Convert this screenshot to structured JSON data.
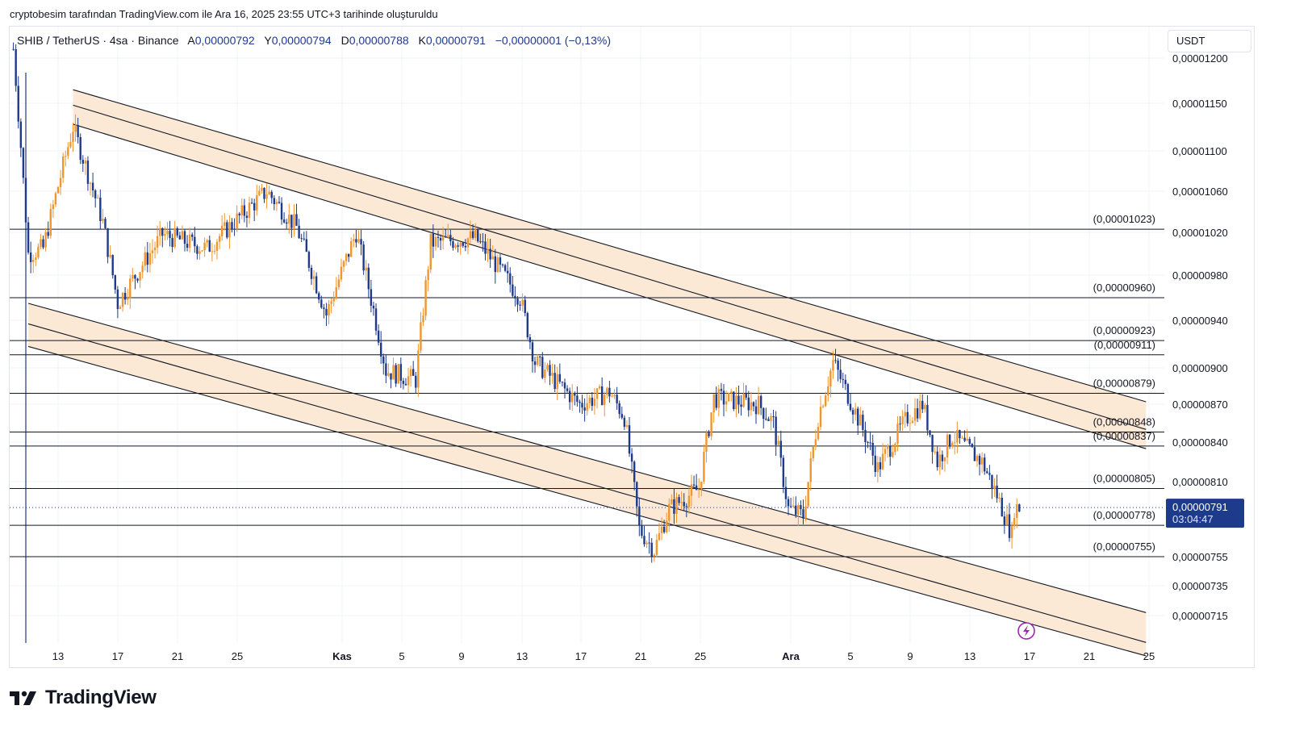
{
  "caption": "cryptobesim tarafından TradingView.com ile Ara 16, 2025 23:55 UTC+3 tarihinde oluşturuldu",
  "legend": {
    "symbol": "SHIB / TetherUS · 4sa · Binance",
    "open_label": "A",
    "open": "0,00000792",
    "high_label": "Y",
    "high": "0,00000794",
    "low_label": "D",
    "low": "0,00000788",
    "close_label": "K",
    "close": "0,00000791",
    "change": "−0,00000001 (−0,13%)"
  },
  "currency": "USDT",
  "brand": "TradingView",
  "colors": {
    "up": "#f0962e",
    "down": "#1e3a8a",
    "line": "#131722",
    "channel_fill": "#fbe9d6",
    "price_tag": "#1e3a8a",
    "grid": "#f2f3f5"
  },
  "chart_data": {
    "type": "candlestick",
    "symbol": "SHIB / TetherUS",
    "timeframe": "4sa",
    "exchange": "Binance",
    "y_axis_ticks": [
      "0,00001200",
      "0,00001150",
      "0,00001100",
      "0,00001060",
      "0,00001020",
      "0,00000980",
      "0,00000940",
      "0,00000900",
      "0,00000870",
      "0,00000840",
      "0,00000810",
      "0,00000755",
      "0,00000735",
      "0,00000715"
    ],
    "x_axis_ticks": [
      "13",
      "17",
      "21",
      "25",
      "Kas",
      "5",
      "9",
      "13",
      "17",
      "21",
      "25",
      "Ara",
      "5",
      "9",
      "13",
      "17",
      "21",
      "25"
    ],
    "horizontal_levels": [
      {
        "value": 1.023e-05,
        "label": "(0,00001023)"
      },
      {
        "value": 9.6e-06,
        "label": "(0,00000960)"
      },
      {
        "value": 9.23e-06,
        "label": "(0,00000923)"
      },
      {
        "value": 9.11e-06,
        "label": "(0,00000911)"
      },
      {
        "value": 8.79e-06,
        "label": "(0,00000879)"
      },
      {
        "value": 8.48e-06,
        "label": "(0,00000848)"
      },
      {
        "value": 8.37e-06,
        "label": "(0,00000837)"
      },
      {
        "value": 8.05e-06,
        "label": "(0,00000805)"
      },
      {
        "value": 7.78e-06,
        "label": "(0,00000778)"
      },
      {
        "value": 7.55e-06,
        "label": "(0,00000755)"
      }
    ],
    "channels": [
      {
        "name": "upper descending channel",
        "from_date": "Ekim 14",
        "to_date": "Aralık 25",
        "lines": [
          {
            "start": 1.165e-05,
            "end": 8.72e-06
          },
          {
            "start": 1.148e-05,
            "end": 8.5e-06
          },
          {
            "start": 1.128e-05,
            "end": 8.35e-06
          }
        ]
      },
      {
        "name": "lower descending channel",
        "from_date": "Ekim 11",
        "to_date": "Aralık 25",
        "lines": [
          {
            "start": 9.55e-06,
            "end": 7.17e-06
          },
          {
            "start": 9.37e-06,
            "end": 6.97e-06
          },
          {
            "start": 9.18e-06,
            "end": 6.88e-06
          }
        ]
      }
    ],
    "price_approx_path": [
      {
        "date": "Ekim 10",
        "price": 1.21e-05
      },
      {
        "date": "Ekim 11",
        "price": 1e-05
      },
      {
        "date": "Ekim 12",
        "price": 1.005e-05
      },
      {
        "date": "Ekim 14",
        "price": 1.125e-05
      },
      {
        "date": "Ekim 16",
        "price": 1.03e-05
      },
      {
        "date": "Ekim 17",
        "price": 9.55e-06
      },
      {
        "date": "Ekim 20",
        "price": 1.018e-05
      },
      {
        "date": "Ekim 23",
        "price": 1.005e-05
      },
      {
        "date": "Ekim 27",
        "price": 1.06e-05
      },
      {
        "date": "Ekim 29",
        "price": 1.025e-05
      },
      {
        "date": "Ekim 31",
        "price": 9.45e-06
      },
      {
        "date": "Kasım 2",
        "price": 1.02e-05
      },
      {
        "date": "Kasım 4",
        "price": 8.98e-06
      },
      {
        "date": "Kasım 6",
        "price": 8.9e-06
      },
      {
        "date": "Kasım 7",
        "price": 1.01e-05
      },
      {
        "date": "Kasım 10",
        "price": 1.015e-05
      },
      {
        "date": "Kasım 13",
        "price": 9.6e-06
      },
      {
        "date": "Kasım 14",
        "price": 9.05e-06
      },
      {
        "date": "Kasım 17",
        "price": 8.7e-06
      },
      {
        "date": "Kasım 19",
        "price": 8.8e-06
      },
      {
        "date": "Kasım 20",
        "price": 8.6e-06
      },
      {
        "date": "Kasım 21",
        "price": 7.75e-06
      },
      {
        "date": "Kasım 22",
        "price": 7.6e-06
      },
      {
        "date": "Kasım 23",
        "price": 7.9e-06
      },
      {
        "date": "Kasım 25",
        "price": 8.05e-06
      },
      {
        "date": "Kasım 26",
        "price": 8.75e-06
      },
      {
        "date": "Kasım 29",
        "price": 8.7e-06
      },
      {
        "date": "Kasım 30",
        "price": 8.55e-06
      },
      {
        "date": "Aralık 1",
        "price": 7.9e-06
      },
      {
        "date": "Aralık 2",
        "price": 7.85e-06
      },
      {
        "date": "Aralık 3",
        "price": 8.6e-06
      },
      {
        "date": "Aralık 4",
        "price": 9.05e-06
      },
      {
        "date": "Aralık 6",
        "price": 8.5e-06
      },
      {
        "date": "Aralık 7",
        "price": 8.2e-06
      },
      {
        "date": "Aralık 9",
        "price": 8.6e-06
      },
      {
        "date": "Aralık 10",
        "price": 8.7e-06
      },
      {
        "date": "Aralık 11",
        "price": 8.25e-06
      },
      {
        "date": "Aralık 12",
        "price": 8.45e-06
      },
      {
        "date": "Aralık 14",
        "price": 8.25e-06
      },
      {
        "date": "Aralık 15",
        "price": 8e-06
      },
      {
        "date": "Aralık 16",
        "price": 7.71e-06
      },
      {
        "date": "Aralık 16",
        "price": 7.91e-06
      }
    ],
    "last_price": "0,00000791",
    "countdown": "03:04:47"
  }
}
